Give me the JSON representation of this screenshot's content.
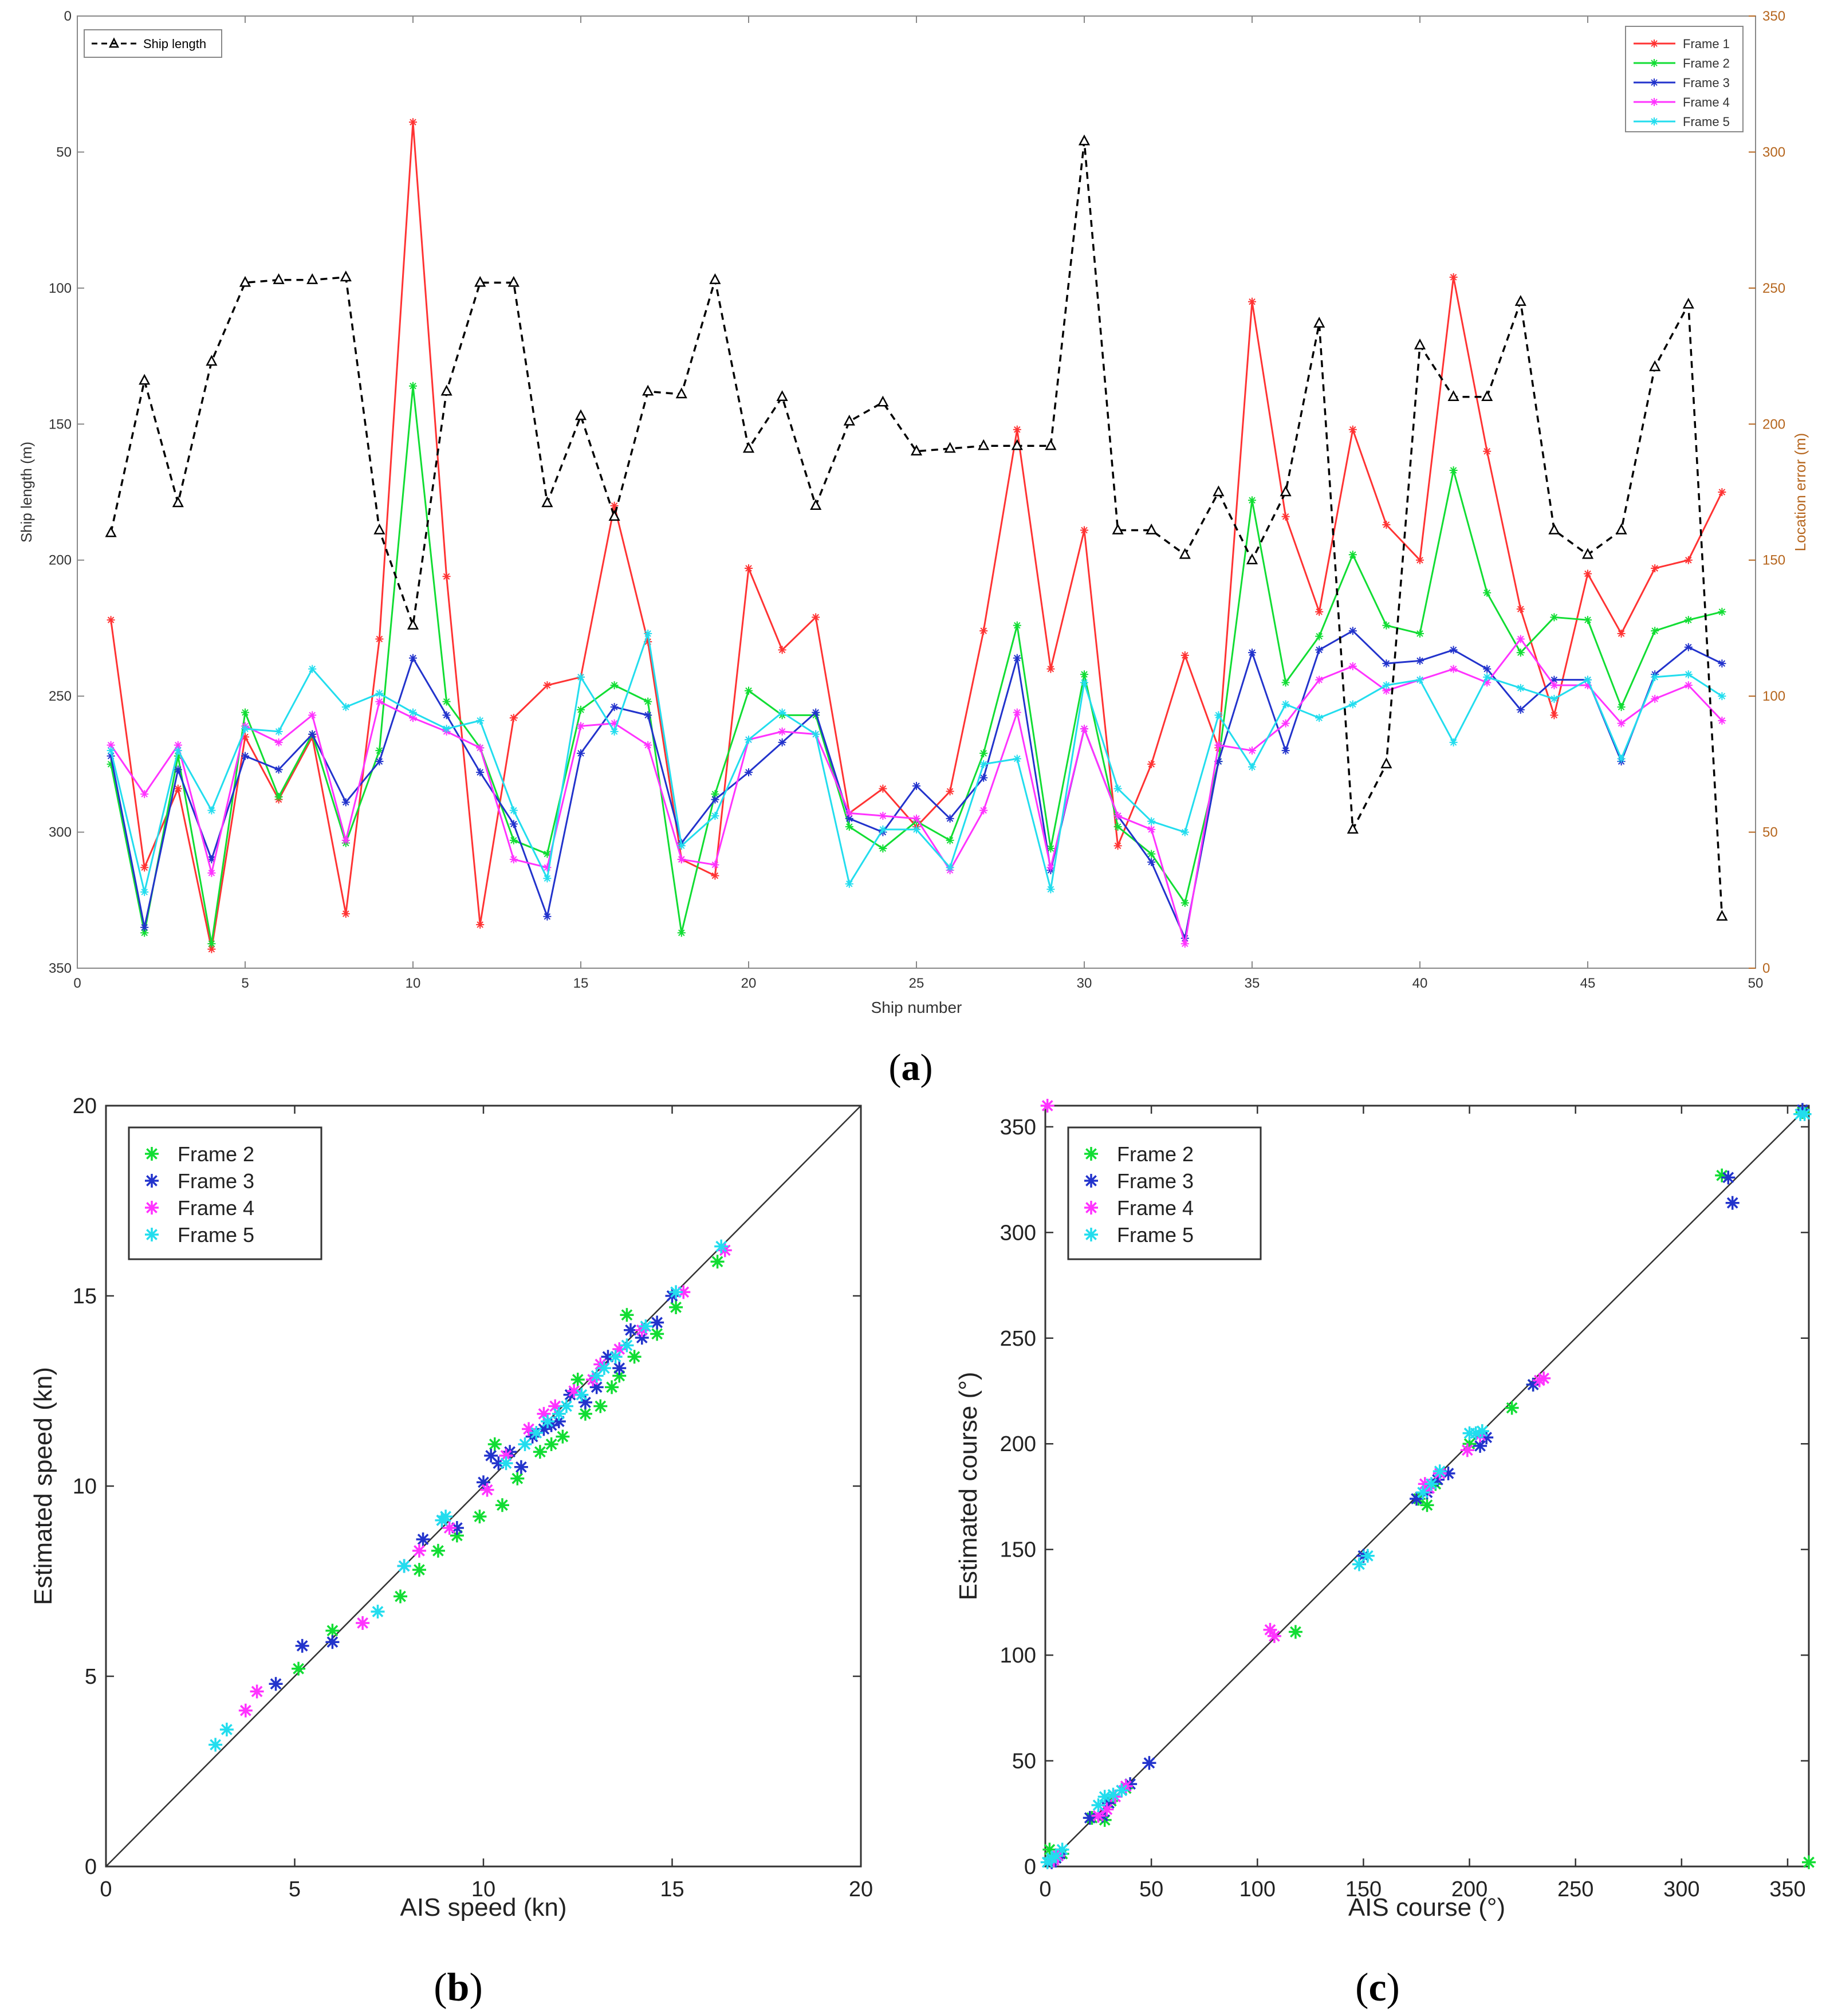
{
  "panels": {
    "a": {
      "caption_open": "(",
      "caption_letter": "a",
      "caption_close": ")",
      "xlabel": "Ship number",
      "ylabel_left": "Ship length (m)",
      "ylabel_right": "Location error (m)",
      "legend_left": "Ship length",
      "legend_right": [
        "Frame 1",
        "Frame 2",
        "Frame 3",
        "Frame 4",
        "Frame 5"
      ]
    },
    "b": {
      "caption_open": "(",
      "caption_letter": "b",
      "caption_close": ")",
      "xlabel": "AIS speed (kn)",
      "ylabel": "Estimated speed (kn)",
      "legend": [
        "Frame 2",
        "Frame 3",
        "Frame 4",
        "Frame 5"
      ]
    },
    "c": {
      "caption_open": "(",
      "caption_letter": "c",
      "caption_close": ")",
      "xlabel": "AIS course (°)",
      "ylabel": "Estimated course (°)",
      "legend": [
        "Frame 2",
        "Frame 3",
        "Frame 4",
        "Frame 5"
      ]
    }
  },
  "colors": {
    "frame1": "#ff3333",
    "frame2": "#11dd33",
    "frame3": "#2233cc",
    "frame4": "#ff33ff",
    "frame5": "#22ddee",
    "ship_length": "#000000",
    "right_axis": "#b5651d"
  },
  "chart_data": [
    {
      "id": "a",
      "type": "line",
      "title": "",
      "xlabel": "Ship number",
      "ylabel": "Ship length (m)",
      "y2label": "Location error (m)",
      "xlim": [
        0,
        50
      ],
      "ylim": [
        0,
        350
      ],
      "y_reversed": true,
      "y2lim": [
        0,
        350
      ],
      "xticks": [
        0,
        5,
        10,
        15,
        20,
        25,
        30,
        35,
        40,
        45,
        50
      ],
      "yticks": [
        0,
        50,
        100,
        150,
        200,
        250,
        300,
        350
      ],
      "y2ticks": [
        0,
        50,
        100,
        150,
        200,
        250,
        300,
        350
      ],
      "x": [
        1,
        2,
        3,
        4,
        5,
        6,
        7,
        8,
        9,
        10,
        11,
        12,
        13,
        14,
        15,
        16,
        17,
        18,
        19,
        20,
        21,
        22,
        23,
        24,
        25,
        26,
        27,
        28,
        29,
        30,
        31,
        32,
        33,
        34,
        35,
        36,
        37,
        38,
        39,
        40,
        41,
        42,
        43,
        44,
        45,
        46,
        47,
        48,
        49
      ],
      "left_series": [
        {
          "name": "Ship length",
          "axis": "left",
          "marker": "triangle",
          "dashed": true,
          "values": [
            190,
            134,
            179,
            127,
            98,
            97,
            97,
            96,
            189,
            224,
            138,
            98,
            98,
            179,
            147,
            184,
            138,
            139,
            97,
            159,
            140,
            180,
            149,
            142,
            160,
            159,
            158,
            158,
            158,
            46,
            189,
            189,
            198,
            175,
            200,
            175,
            113,
            299,
            275,
            121,
            140,
            140,
            105,
            189,
            198,
            189,
            129,
            106,
            331
          ]
        }
      ],
      "series": [
        {
          "name": "Frame 1",
          "axis": "right",
          "values": [
            128,
            37,
            66,
            7,
            85,
            62,
            85,
            20,
            121,
            311,
            144,
            16,
            92,
            104,
            107,
            170,
            120,
            40,
            34,
            147,
            117,
            129,
            57,
            66,
            52,
            65,
            124,
            198,
            110,
            161,
            45,
            75,
            115,
            81,
            245,
            166,
            131,
            198,
            163,
            150,
            254,
            190,
            132,
            93,
            145,
            123,
            147,
            150,
            175
          ]
        },
        {
          "name": "Frame 2",
          "axis": "right",
          "values": [
            75,
            13,
            78,
            9,
            94,
            63,
            86,
            46,
            80,
            214,
            98,
            81,
            47,
            42,
            95,
            104,
            98,
            13,
            64,
            102,
            93,
            93,
            52,
            44,
            54,
            47,
            79,
            126,
            44,
            108,
            52,
            42,
            24,
            76,
            172,
            105,
            122,
            152,
            126,
            123,
            183,
            138,
            116,
            129,
            128,
            96,
            124,
            128,
            131
          ]
        },
        {
          "name": "Frame 3",
          "axis": "right",
          "values": [
            78,
            15,
            73,
            40,
            78,
            73,
            86,
            61,
            76,
            114,
            93,
            72,
            53,
            19,
            79,
            96,
            93,
            46,
            62,
            72,
            83,
            94,
            55,
            50,
            67,
            55,
            70,
            114,
            36,
            88,
            56,
            39,
            11,
            76,
            116,
            80,
            117,
            124,
            112,
            113,
            117,
            110,
            95,
            106,
            106,
            76,
            108,
            118,
            112
          ]
        },
        {
          "name": "Frame 4",
          "axis": "right",
          "values": [
            82,
            64,
            82,
            35,
            89,
            83,
            93,
            47,
            98,
            92,
            87,
            81,
            40,
            37,
            89,
            90,
            82,
            40,
            38,
            84,
            87,
            86,
            57,
            56,
            55,
            36,
            58,
            94,
            37,
            88,
            56,
            51,
            9,
            82,
            80,
            90,
            106,
            111,
            102,
            106,
            110,
            105,
            121,
            104,
            104,
            90,
            99,
            104,
            91
          ]
        },
        {
          "name": "Frame 5",
          "axis": "right",
          "values": [
            80,
            28,
            80,
            58,
            88,
            87,
            110,
            96,
            101,
            94,
            88,
            91,
            58,
            33,
            107,
            87,
            123,
            45,
            56,
            84,
            94,
            86,
            31,
            51,
            51,
            37,
            75,
            77,
            29,
            105,
            66,
            54,
            50,
            93,
            74,
            97,
            92,
            97,
            104,
            106,
            83,
            107,
            103,
            99,
            106,
            77,
            107,
            108,
            100
          ]
        }
      ]
    },
    {
      "id": "b",
      "type": "scatter",
      "title": "",
      "xlabel": "AIS speed (kn)",
      "ylabel": "Estimated speed (kn)",
      "xlim": [
        0,
        20
      ],
      "ylim": [
        0,
        20
      ],
      "xticks": [
        0,
        5,
        10,
        15,
        20
      ],
      "yticks": [
        0,
        5,
        10,
        15,
        20
      ],
      "reference_line": "y = x",
      "legend_position": "top-left",
      "series": [
        {
          "name": "Frame 2",
          "x": [
            5.1,
            6,
            7.8,
            8.3,
            8.8,
            9.3,
            9.9,
            10.3,
            10.5,
            10.9,
            11.5,
            11.8,
            12.1,
            12.5,
            12.7,
            13.1,
            13.4,
            13.6,
            13.8,
            14,
            14.6,
            15.1,
            16.2
          ],
          "y": [
            5.2,
            6.2,
            7.1,
            7.8,
            8.3,
            8.7,
            9.2,
            11.1,
            9.5,
            10.2,
            10.9,
            11.1,
            11.3,
            12.8,
            11.9,
            12.1,
            12.6,
            12.9,
            14.5,
            13.4,
            14,
            14.7,
            15.9
          ]
        },
        {
          "name": "Frame 3",
          "x": [
            4.5,
            5.2,
            6,
            7.9,
            8.4,
            8.9,
            9.3,
            10,
            10.2,
            10.4,
            10.7,
            11,
            11.3,
            11.6,
            11.8,
            12,
            12.3,
            12.7,
            13,
            13.3,
            13.6,
            13.9,
            14.2,
            14.6,
            15
          ],
          "y": [
            4.8,
            5.8,
            5.9,
            7.9,
            8.6,
            9.1,
            8.9,
            10.1,
            10.8,
            10.6,
            10.9,
            10.5,
            11.3,
            11.5,
            11.6,
            11.7,
            12.4,
            12.2,
            12.6,
            13.4,
            13.1,
            14.1,
            13.9,
            14.3,
            15
          ]
        },
        {
          "name": "Frame 4",
          "x": [
            3.7,
            4,
            6.8,
            8.3,
            9.1,
            10.1,
            10.6,
            11.2,
            11.6,
            11.9,
            12.4,
            12.9,
            13.1,
            13.6,
            14.2,
            15.3,
            16.4
          ],
          "y": [
            4.1,
            4.6,
            6.4,
            8.3,
            8.9,
            9.9,
            10.8,
            11.5,
            11.9,
            12.1,
            12.5,
            12.8,
            13.2,
            13.6,
            14.1,
            15.1,
            16.2
          ]
        },
        {
          "name": "Frame 5",
          "x": [
            2.9,
            3.2,
            7.2,
            7.9,
            8.9,
            9,
            10.6,
            11.1,
            11.4,
            11.7,
            12,
            12.2,
            12.6,
            13,
            13.2,
            13.5,
            13.8,
            14.3,
            15.1,
            16.3
          ],
          "y": [
            3.2,
            3.6,
            6.7,
            7.9,
            9.1,
            9.2,
            10.6,
            11.1,
            11.4,
            11.7,
            11.9,
            12.1,
            12.4,
            12.9,
            13.1,
            13.4,
            13.7,
            14.2,
            15.1,
            16.3
          ]
        }
      ]
    },
    {
      "id": "c",
      "type": "scatter",
      "title": "",
      "xlabel": "AIS course (°)",
      "ylabel": "Estimated course (°)",
      "xlim": [
        0,
        360
      ],
      "ylim": [
        0,
        360
      ],
      "xticks": [
        0,
        50,
        100,
        150,
        200,
        250,
        300,
        350
      ],
      "yticks": [
        0,
        50,
        100,
        150,
        200,
        250,
        300,
        350
      ],
      "reference_line": "y = x",
      "legend_position": "top-left",
      "series": [
        {
          "name": "Frame 2",
          "x": [
            2,
            3,
            5,
            8,
            22,
            28,
            31,
            38,
            118,
            150,
            176,
            180,
            184,
            200,
            206,
            220,
            230,
            319,
            357,
            360
          ],
          "y": [
            8,
            3,
            4,
            6,
            23,
            22,
            31,
            37,
            111,
            147,
            174,
            171,
            181,
            200,
            206,
            217,
            228,
            327,
            357,
            2
          ]
        },
        {
          "name": "Frame 3",
          "x": [
            3,
            5,
            7,
            21,
            27,
            30,
            36,
            40,
            49,
            150,
            175,
            180,
            185,
            190,
            205,
            208,
            230,
            322,
            324,
            357
          ],
          "y": [
            2,
            4,
            6,
            23,
            24,
            30,
            36,
            39,
            49,
            147,
            174,
            177,
            183,
            186,
            199,
            203,
            228,
            326,
            314,
            358
          ]
        },
        {
          "name": "Frame 4",
          "x": [
            1,
            4,
            6,
            25,
            29,
            33,
            38,
            106,
            108,
            179,
            181,
            186,
            199,
            205,
            233,
            235
          ],
          "y": [
            360,
            3,
            5,
            24,
            27,
            33,
            38,
            112,
            109,
            181,
            179,
            186,
            197,
            204,
            230,
            231
          ]
        },
        {
          "name": "Frame 5",
          "x": [
            1,
            3,
            5,
            8,
            25,
            28,
            32,
            36,
            148,
            152,
            178,
            182,
            186,
            200,
            203,
            206,
            356,
            358
          ],
          "y": [
            2,
            4,
            5,
            8,
            29,
            33,
            34,
            36,
            143,
            147,
            177,
            181,
            187,
            205,
            205,
            206,
            356,
            356
          ]
        }
      ]
    }
  ]
}
